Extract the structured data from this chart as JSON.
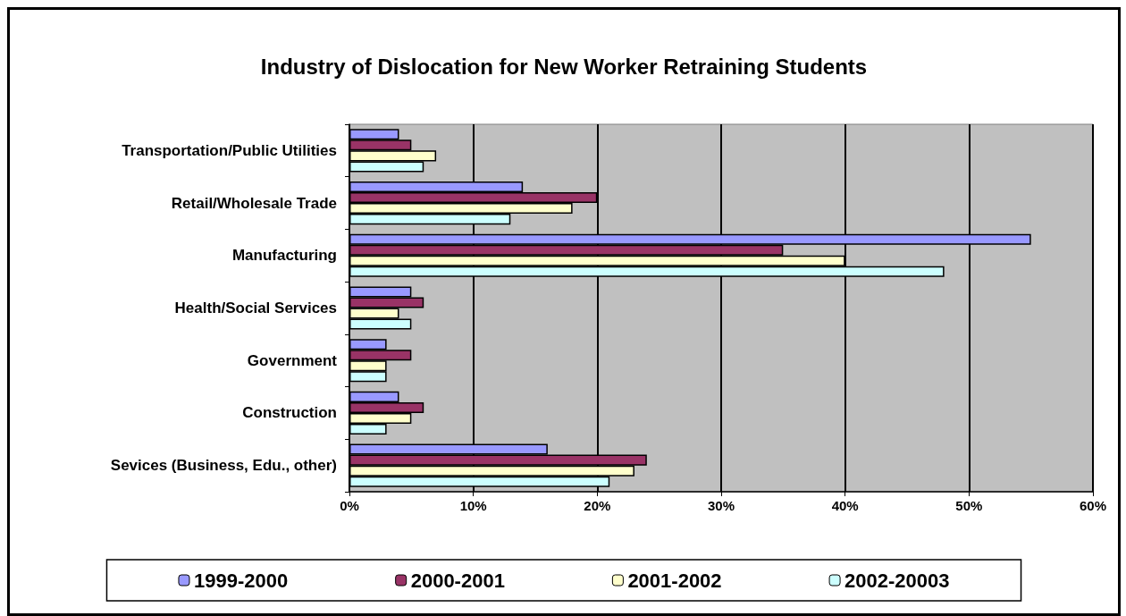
{
  "chart_data": {
    "type": "bar",
    "orientation": "horizontal",
    "title": "Industry of Dislocation for New Worker Retraining Students",
    "categories": [
      "Transportation/Public Utilities",
      "Retail/Wholesale Trade",
      "Manufacturing",
      "Health/Social Services",
      "Government",
      "Construction",
      "Sevices (Business, Edu., other)"
    ],
    "series": [
      {
        "name": "1999-2000",
        "color": "#9999ff",
        "values": [
          4,
          14,
          55,
          5,
          3,
          4,
          16
        ]
      },
      {
        "name": "2000-2001",
        "color": "#993366",
        "values": [
          5,
          20,
          35,
          6,
          5,
          6,
          24
        ]
      },
      {
        "name": "2001-2002",
        "color": "#ffffcc",
        "values": [
          7,
          18,
          40,
          4,
          3,
          5,
          23
        ]
      },
      {
        "name": "2002-20003",
        "color": "#ccffff",
        "values": [
          6,
          13,
          48,
          5,
          3,
          3,
          21
        ]
      }
    ],
    "xlim": [
      0,
      60
    ],
    "xticks": [
      {
        "value": 0,
        "label": "0%"
      },
      {
        "value": 10,
        "label": "10%"
      },
      {
        "value": 20,
        "label": "20%"
      },
      {
        "value": 30,
        "label": "30%"
      },
      {
        "value": 40,
        "label": "40%"
      },
      {
        "value": 50,
        "label": "50%"
      },
      {
        "value": 60,
        "label": "60%"
      }
    ],
    "grid": "x",
    "legend": "bottom"
  }
}
